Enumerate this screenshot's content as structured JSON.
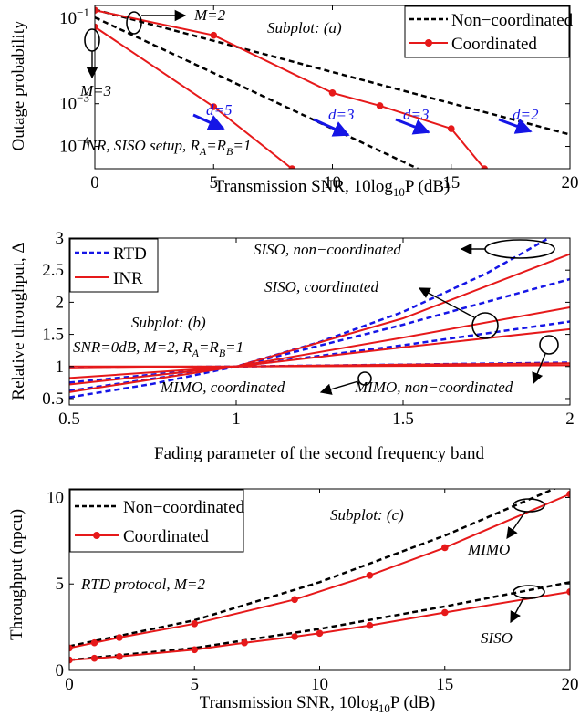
{
  "chart_data": [
    {
      "type": "line",
      "subplot_label": "Subplot: (a)",
      "title": "",
      "xlabel": "Transmission SNR, 10log",
      "xlabel_sub": "10",
      "xlabel_tail": "P (dB)",
      "ylabel": "Outage probability",
      "xlim": [
        0,
        20
      ],
      "ylim": [
        3e-05,
        0.2
      ],
      "yscale": "log",
      "x_ticks": [
        0,
        5,
        10,
        15,
        20
      ],
      "y_ticks": [
        {
          "value": 0.1,
          "base": "10",
          "exp": "−1"
        },
        {
          "value": 0.001,
          "base": "10",
          "exp": "−3"
        },
        {
          "value": 0.0001,
          "base": "10",
          "exp": "−4"
        }
      ],
      "legend": [
        "Non−coordinated",
        "Coordinated"
      ],
      "legend_position": "top-right",
      "series": [
        {
          "name": "Non−coordinated",
          "style": "dashed",
          "color": "#000000",
          "x": [
            0,
            20
          ],
          "y": [
            0.16,
            0.00019
          ]
        },
        {
          "name": "Non−coordinated",
          "style": "dashed",
          "color": "#000000",
          "x": [
            0,
            13.6
          ],
          "y": [
            0.105,
            3e-05
          ]
        },
        {
          "name": "Coordinated",
          "style": "solid-marker",
          "color": "#e6191a",
          "x": [
            0,
            5,
            10,
            12,
            15,
            16.4
          ],
          "y": [
            0.155,
            0.04,
            0.0018,
            0.0009,
            0.00026,
            3e-05
          ]
        },
        {
          "name": "Coordinated",
          "style": "solid-marker",
          "color": "#e6191a",
          "x": [
            0,
            5,
            8.3
          ],
          "y": [
            0.063,
            0.00085,
            3e-05
          ]
        }
      ],
      "annotations": [
        "M=2",
        "M=3",
        "d=5",
        "d=3",
        "d=3",
        "d=2",
        "INR, SISO setup, R",
        "A",
        "=R",
        "B",
        "=1"
      ]
    },
    {
      "type": "line",
      "subplot_label": "Subplot: (b)",
      "title": "",
      "xlabel": "Fading parameter of the second frequency band",
      "ylabel": "Relative throughput, Δ",
      "xlim": [
        0.5,
        2
      ],
      "ylim": [
        0.4,
        3
      ],
      "x_ticks": [
        "0.5",
        "1",
        "1.5",
        "2"
      ],
      "y_ticks": [
        "0.5",
        "1",
        "1.5",
        "2",
        "2.5",
        "3"
      ],
      "legend": [
        "RTD",
        "INR"
      ],
      "legend_position": "top-left",
      "series": [
        {
          "name": "RTD",
          "style": "dashed",
          "color": "#1515e6",
          "x": [
            0.5,
            0.75,
            1,
            1.25,
            1.5,
            1.75,
            1.93
          ],
          "y": [
            0.52,
            0.73,
            1.0,
            1.38,
            1.85,
            2.45,
            2.98
          ]
        },
        {
          "name": "RTD",
          "style": "dashed",
          "color": "#1515e6",
          "x": [
            0.5,
            1,
            1.5,
            2
          ],
          "y": [
            0.62,
            1.0,
            1.65,
            2.36
          ]
        },
        {
          "name": "RTD",
          "style": "dashed",
          "color": "#1515e6",
          "x": [
            0.5,
            1,
            1.5,
            2
          ],
          "y": [
            0.75,
            1.0,
            1.33,
            1.7
          ]
        },
        {
          "name": "RTD",
          "style": "dashed",
          "color": "#1515e6",
          "x": [
            0.5,
            1,
            1.5,
            2
          ],
          "y": [
            0.98,
            1.0,
            1.03,
            1.06
          ]
        },
        {
          "name": "INR",
          "style": "solid",
          "color": "#e6191a",
          "x": [
            0.5,
            1,
            1.5,
            2
          ],
          "y": [
            0.6,
            1.0,
            1.75,
            2.75
          ]
        },
        {
          "name": "INR",
          "style": "solid",
          "color": "#e6191a",
          "x": [
            0.5,
            1,
            1.5,
            2
          ],
          "y": [
            0.72,
            1.0,
            1.45,
            1.92
          ]
        },
        {
          "name": "INR",
          "style": "solid",
          "color": "#e6191a",
          "x": [
            0.5,
            1,
            1.5,
            2
          ],
          "y": [
            0.82,
            1.0,
            1.3,
            1.58
          ]
        },
        {
          "name": "INR",
          "style": "solid",
          "color": "#e6191a",
          "x": [
            0.5,
            1,
            1.5,
            2
          ],
          "y": [
            0.97,
            1.0,
            1.03,
            1.05
          ]
        },
        {
          "name": "INR",
          "style": "solid",
          "color": "#e6191a",
          "x": [
            0.5,
            1,
            1.5,
            2
          ],
          "y": [
            1.0,
            1.0,
            1.01,
            1.02
          ]
        }
      ],
      "annotations": [
        "SISO, non−coordinated",
        "SISO, coordinated",
        "MIMO, coordinated",
        "MIMO, non−coordinated",
        "SNR=0dB, M=2, R",
        "A",
        "=R",
        "B",
        "=1"
      ]
    },
    {
      "type": "line",
      "subplot_label": "Subplot: (c)",
      "title": "",
      "xlabel": "Transmission SNR, 10log",
      "xlabel_sub": "10",
      "xlabel_tail": "P (dB)",
      "ylabel": "Throughput (npcu)",
      "xlim": [
        0,
        20
      ],
      "ylim": [
        0,
        10.5
      ],
      "x_ticks": [
        "0",
        "5",
        "10",
        "15",
        "20"
      ],
      "y_ticks": [
        "0",
        "5",
        "10"
      ],
      "legend": [
        "Non−coordinated",
        "Coordinated"
      ],
      "legend_position": "top-left",
      "series": [
        {
          "name": "Non−coordinated",
          "style": "dashed",
          "color": "#000000",
          "x": [
            0,
            5,
            10,
            15,
            20
          ],
          "y": [
            1.4,
            2.9,
            5.1,
            7.8,
            10.9
          ]
        },
        {
          "name": "Non−coordinated",
          "style": "dashed",
          "color": "#000000",
          "x": [
            0,
            5,
            10,
            15,
            20
          ],
          "y": [
            0.6,
            1.3,
            2.4,
            3.7,
            5.1
          ]
        },
        {
          "name": "Coordinated",
          "style": "solid-marker",
          "color": "#e6191a",
          "x": [
            0,
            1,
            2,
            5,
            9,
            12,
            15,
            20
          ],
          "y": [
            1.3,
            1.6,
            1.9,
            2.7,
            4.1,
            5.5,
            7.1,
            10.2
          ]
        },
        {
          "name": "Coordinated",
          "style": "solid-marker",
          "color": "#e6191a",
          "x": [
            0,
            1,
            2,
            5,
            7,
            9,
            10,
            12,
            15,
            20
          ],
          "y": [
            0.6,
            0.7,
            0.8,
            1.2,
            1.6,
            1.95,
            2.15,
            2.6,
            3.35,
            4.55
          ]
        }
      ],
      "annotations": [
        "MIMO",
        "SISO",
        "RTD protocol, M=2"
      ]
    }
  ],
  "colors": {
    "red": "#e6191a",
    "blue": "#1515e6",
    "black": "#000000"
  }
}
